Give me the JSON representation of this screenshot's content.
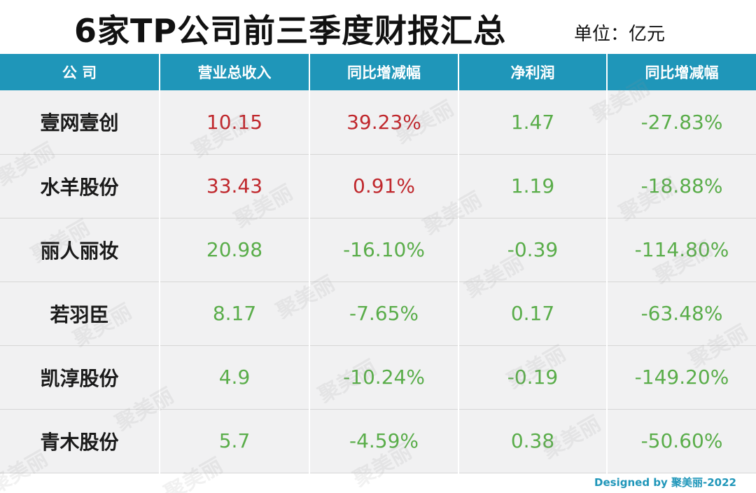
{
  "title": "6家TP公司前三季度财报汇总",
  "unit": "单位：亿元",
  "watermark_text": "聚美丽",
  "credit": "Designed by 聚美丽-2022",
  "colors": {
    "header_bg": "#1f96b9",
    "row_bg": "#f1f1f2",
    "increase": "#c0282d",
    "decrease": "#5aad4a"
  },
  "chart_data": {
    "type": "table",
    "columns": [
      "公 司",
      "营业总收入",
      "同比增减幅",
      "净利润",
      "同比增减幅"
    ],
    "rows": [
      [
        "壹网壹创",
        "10.15",
        "39.23%",
        "1.47",
        "-27.83%"
      ],
      [
        "水羊股份",
        "33.43",
        "0.91%",
        "1.19",
        "-18.88%"
      ],
      [
        "丽人丽妆",
        "20.98",
        "-16.10%",
        "-0.39",
        "-114.80%"
      ],
      [
        "若羽臣",
        "8.17",
        "-7.65%",
        "0.17",
        "-63.48%"
      ],
      [
        "凯淳股份",
        "4.9",
        "-10.24%",
        "-0.19",
        "-149.20%"
      ],
      [
        "青木股份",
        "5.7",
        "-4.59%",
        "0.38",
        "-50.60%"
      ]
    ],
    "cell_tone": [
      [
        "",
        "pos",
        "pos",
        "neg",
        "neg"
      ],
      [
        "",
        "pos",
        "pos",
        "neg",
        "neg"
      ],
      [
        "",
        "neg",
        "neg",
        "neg",
        "neg"
      ],
      [
        "",
        "neg",
        "neg",
        "neg",
        "neg"
      ],
      [
        "",
        "neg",
        "neg",
        "neg",
        "neg"
      ],
      [
        "",
        "neg",
        "neg",
        "neg",
        "neg"
      ]
    ]
  }
}
